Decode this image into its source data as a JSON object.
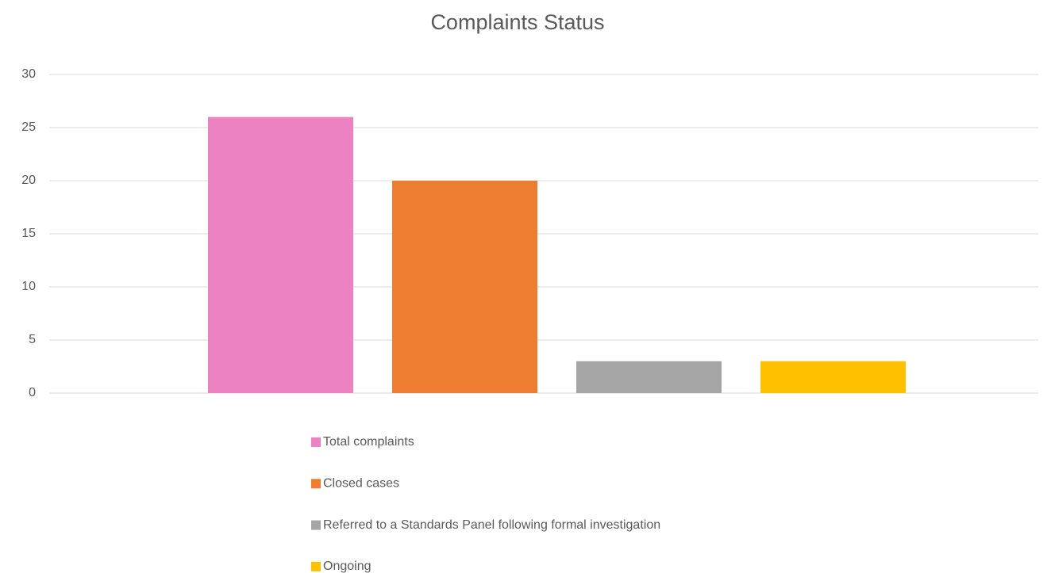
{
  "chart_data": {
    "type": "bar",
    "title": "Complaints Status",
    "series": [
      {
        "name": "Total complaints",
        "color": "#ec82c2",
        "values": [
          26
        ]
      },
      {
        "name": "Closed cases",
        "color": "#ed7d31",
        "values": [
          20
        ]
      },
      {
        "name": "Referred to a Standards Panel following formal investigation",
        "color": "#a5a5a5",
        "values": [
          3
        ]
      },
      {
        "name": "Ongoing",
        "color": "#ffc000",
        "values": [
          3
        ]
      }
    ],
    "ylim": [
      0,
      30
    ],
    "yticks": [
      0,
      5,
      10,
      15,
      20,
      25,
      30
    ],
    "grid": true,
    "legend": "bottom"
  }
}
